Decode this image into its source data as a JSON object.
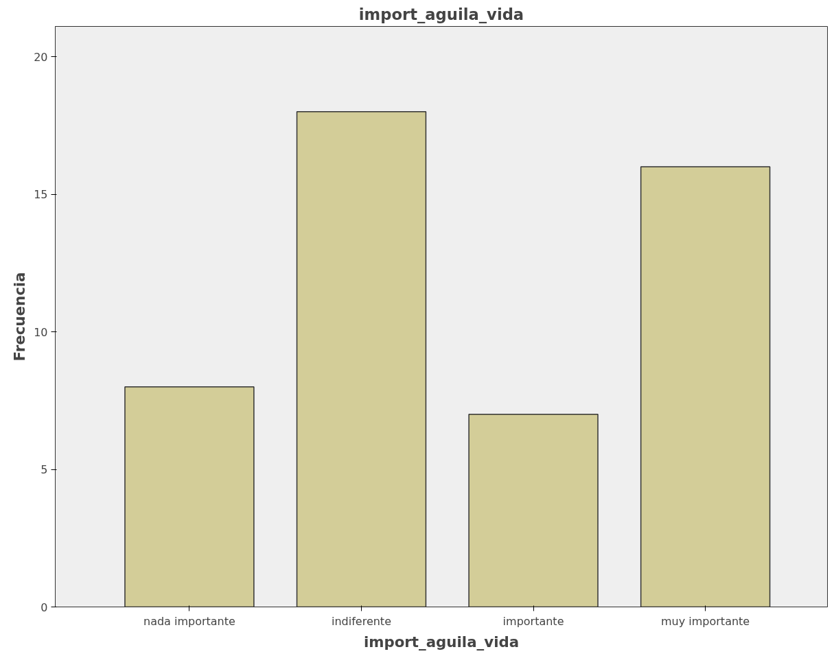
{
  "chart_data": {
    "type": "bar",
    "title": "import_aguila_vida",
    "xlabel": "import_aguila_vida",
    "ylabel": "Frecuencia",
    "categories": [
      "nada importante",
      "indiferente",
      "importante",
      "muy importante"
    ],
    "values": [
      8,
      18,
      7,
      16
    ],
    "color": "#d3cd98",
    "ylim": [
      0,
      21.1
    ],
    "yticks": [
      0,
      5,
      10,
      15,
      20
    ],
    "grid": false
  }
}
